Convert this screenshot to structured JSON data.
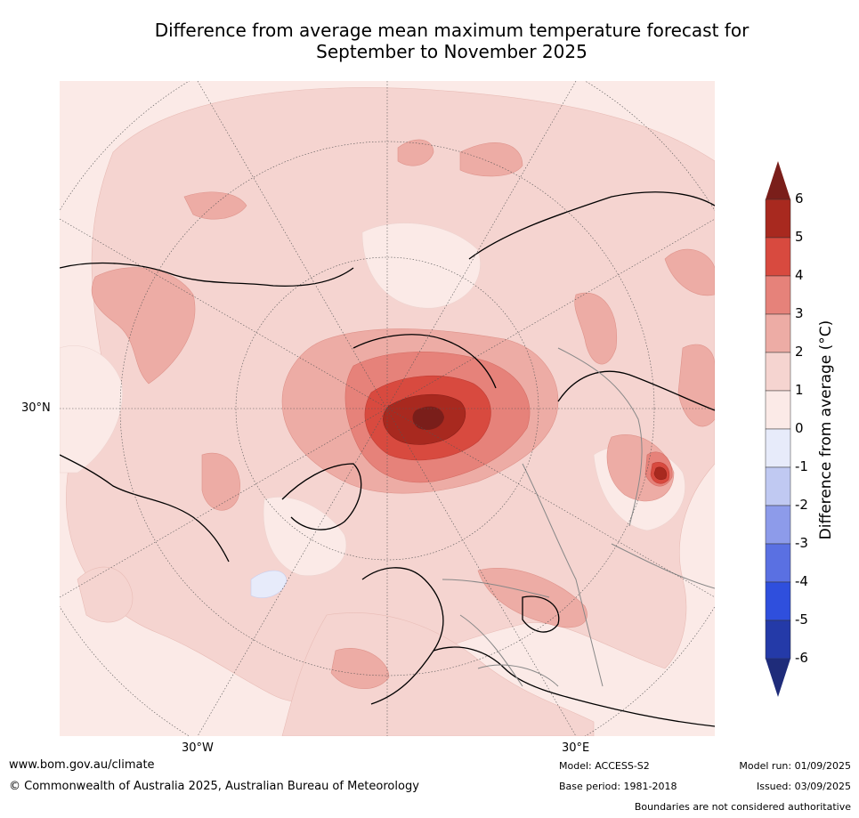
{
  "title_line1": "Difference from average mean maximum temperature forecast for",
  "title_line2": "September to November 2025",
  "labels": {
    "lat": "30°N",
    "lon_west": "30°W",
    "lon_east": "30°E"
  },
  "colorbar": {
    "label": "Difference from average (°C)",
    "ticks": [
      "6",
      "5",
      "4",
      "3",
      "2",
      "1",
      "0",
      "-1",
      "-2",
      "-3",
      "-4",
      "-5",
      "-6"
    ],
    "colors": {
      "over": "#7a1e1a",
      "5_6": "#a8291f",
      "4_5": "#d84a3f",
      "3_4": "#e6827a",
      "2_3": "#edaca5",
      "1_2": "#f5d4d0",
      "0_1": "#fbeae7",
      "m1_0": "#e7ebfa",
      "m2_m1": "#c0c9f2",
      "m3_m2": "#8d9bea",
      "m4_m3": "#5a70e2",
      "m5_m4": "#2f4fdd",
      "m6_m5": "#243aa8",
      "under": "#1f2c7a"
    }
  },
  "footer": {
    "website": "www.bom.gov.au/climate",
    "copyright": "© Commonwealth of Australia 2025, Australian Bureau of Meteorology",
    "model": "Model: ACCESS-S2",
    "base_period": "Base period: 1981-2018",
    "model_run": "Model run: 01/09/2025",
    "issued": "Issued: 03/09/2025",
    "disclaimer": "Boundaries are not considered authoritative"
  }
}
